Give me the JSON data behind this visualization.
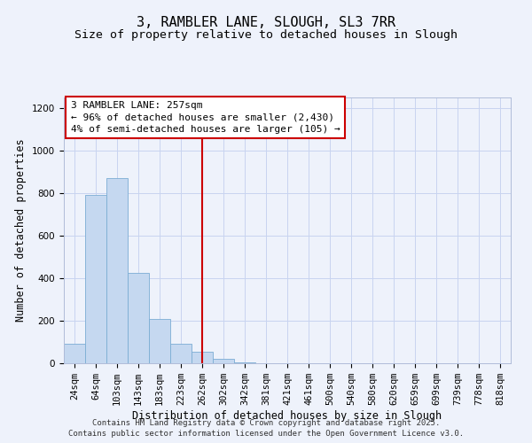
{
  "title": "3, RAMBLER LANE, SLOUGH, SL3 7RR",
  "subtitle": "Size of property relative to detached houses in Slough",
  "xlabel": "Distribution of detached houses by size in Slough",
  "ylabel": "Number of detached properties",
  "categories": [
    "24sqm",
    "64sqm",
    "103sqm",
    "143sqm",
    "183sqm",
    "223sqm",
    "262sqm",
    "302sqm",
    "342sqm",
    "381sqm",
    "421sqm",
    "461sqm",
    "500sqm",
    "540sqm",
    "580sqm",
    "620sqm",
    "659sqm",
    "699sqm",
    "739sqm",
    "778sqm",
    "818sqm"
  ],
  "bar_values": [
    90,
    790,
    870,
    425,
    210,
    90,
    55,
    20,
    5,
    0,
    0,
    0,
    0,
    0,
    0,
    0,
    0,
    0,
    0,
    0,
    0
  ],
  "bar_color": "#c5d8f0",
  "bar_edge_color": "#7badd4",
  "vline_x_index": 6,
  "vline_color": "#cc0000",
  "annotation_line1": "3 RAMBLER LANE: 257sqm",
  "annotation_line2": "← 96% of detached houses are smaller (2,430)",
  "annotation_line3": "4% of semi-detached houses are larger (105) →",
  "ylim": [
    0,
    1250
  ],
  "yticks": [
    0,
    200,
    400,
    600,
    800,
    1000,
    1200
  ],
  "background_color": "#eef2fb",
  "grid_color": "#c8d4f0",
  "footer_line1": "Contains HM Land Registry data © Crown copyright and database right 2025.",
  "footer_line2": "Contains public sector information licensed under the Open Government Licence v3.0.",
  "title_fontsize": 11,
  "subtitle_fontsize": 9.5,
  "axis_label_fontsize": 8.5,
  "tick_fontsize": 7.5,
  "annotation_fontsize": 8,
  "footer_fontsize": 6.5
}
